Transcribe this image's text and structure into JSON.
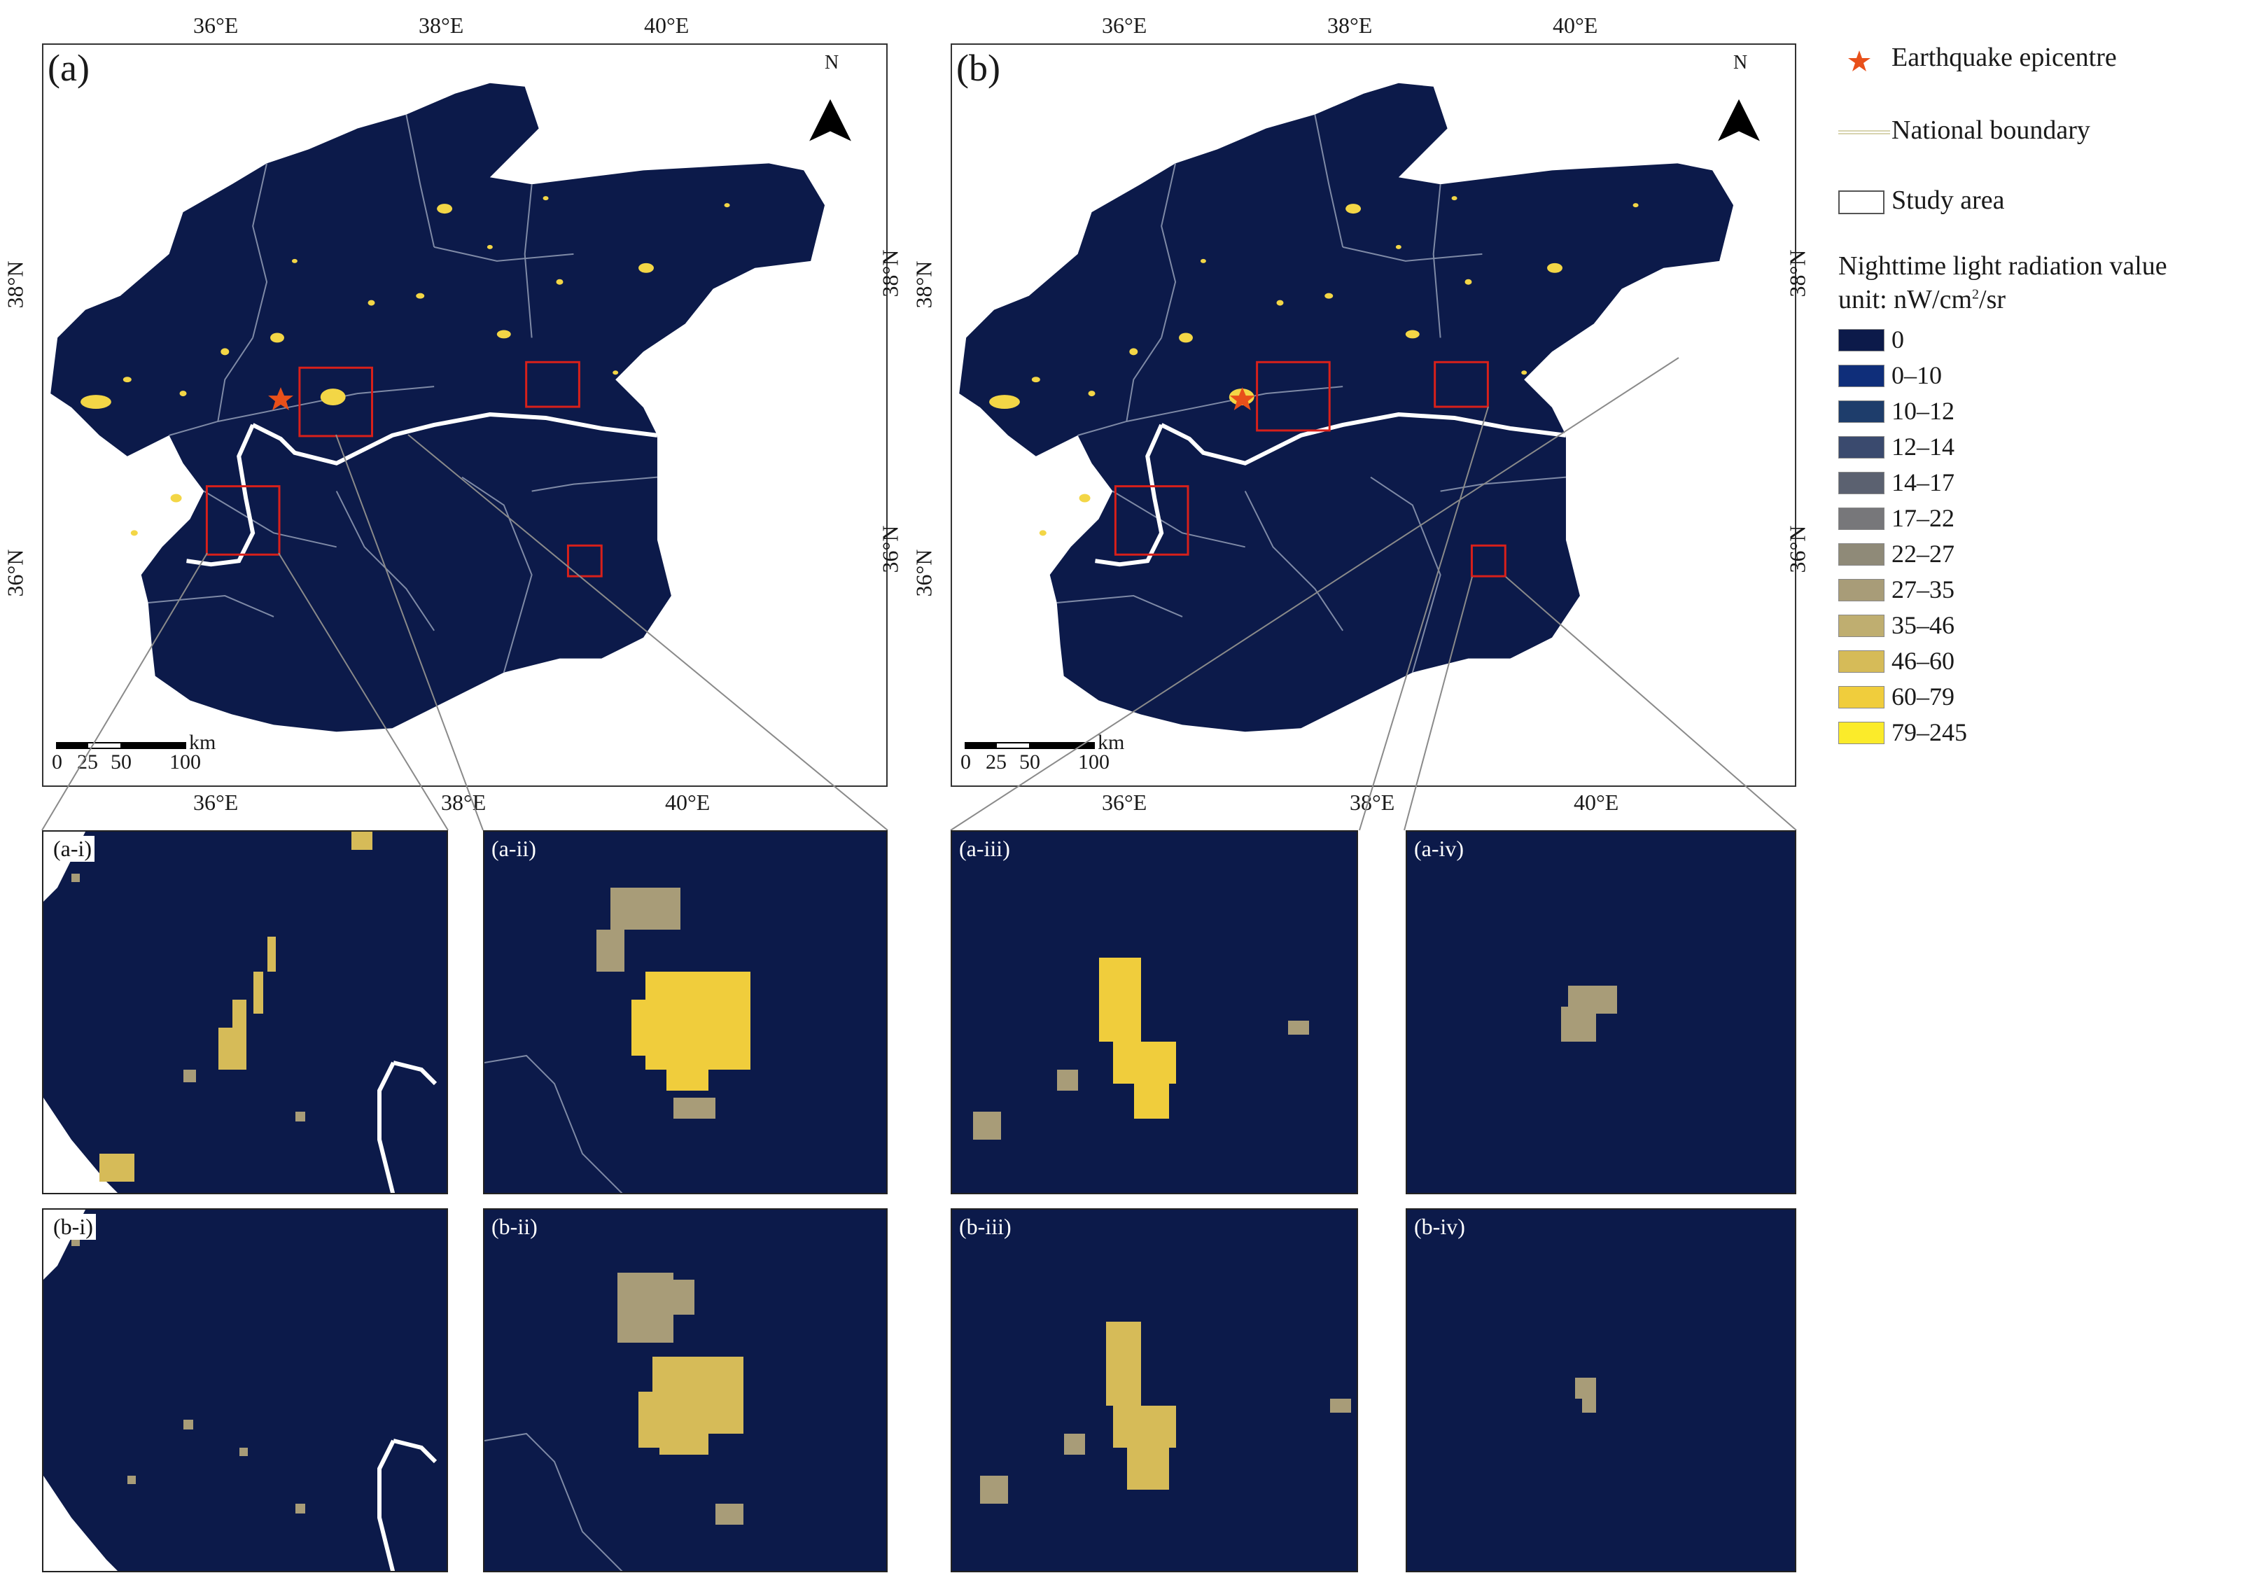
{
  "panels": {
    "a": {
      "letter": "(a)",
      "north": "N"
    },
    "b": {
      "letter": "(b)",
      "north": "N"
    }
  },
  "ticks": {
    "lon": [
      "36°E",
      "38°E",
      "40°E"
    ],
    "lat": [
      "38°N",
      "36°N"
    ]
  },
  "scalebar": {
    "unit": "km",
    "labels": [
      "0",
      "25",
      "50",
      "100"
    ]
  },
  "insets": [
    {
      "id": "a-i",
      "label": "(a-i)"
    },
    {
      "id": "a-ii",
      "label": "(a-ii)"
    },
    {
      "id": "a-iii",
      "label": "(a-iii)"
    },
    {
      "id": "a-iv",
      "label": "(a-iv)"
    },
    {
      "id": "b-i",
      "label": "(b-i)"
    },
    {
      "id": "b-ii",
      "label": "(b-ii)"
    },
    {
      "id": "b-iii",
      "label": "(b-iii)"
    },
    {
      "id": "b-iv",
      "label": "(b-iv)"
    }
  ],
  "legend": {
    "epicentre": "Earthquake epicentre",
    "national_boundary": "National boundary",
    "study_area": "Study area",
    "title": "Nighttime light radiation value",
    "unit_prefix": "unit: nW/cm",
    "unit_sup": "2",
    "unit_suffix": "/sr",
    "classes": [
      {
        "label": "0",
        "color": "#0c1a4a"
      },
      {
        "label": "0–10",
        "color": "#0f2e7a"
      },
      {
        "label": "10–12",
        "color": "#1e3d6b"
      },
      {
        "label": "12–14",
        "color": "#3a4a6e"
      },
      {
        "label": "14–17",
        "color": "#5b6170"
      },
      {
        "label": "17–22",
        "color": "#77777a"
      },
      {
        "label": "22–27",
        "color": "#8f8a78"
      },
      {
        "label": "27–35",
        "color": "#a89c78"
      },
      {
        "label": "35–46",
        "color": "#bfae70"
      },
      {
        "label": "46–60",
        "color": "#d6bb58"
      },
      {
        "label": "60–79",
        "color": "#f0cd3c"
      },
      {
        "label": "79–245",
        "color": "#fbeb2a"
      }
    ],
    "colors": {
      "epicentre": "#e8501a",
      "boundary": "#d8d4b0",
      "background": "#0c1a4a",
      "bright": "#f3d646"
    }
  }
}
